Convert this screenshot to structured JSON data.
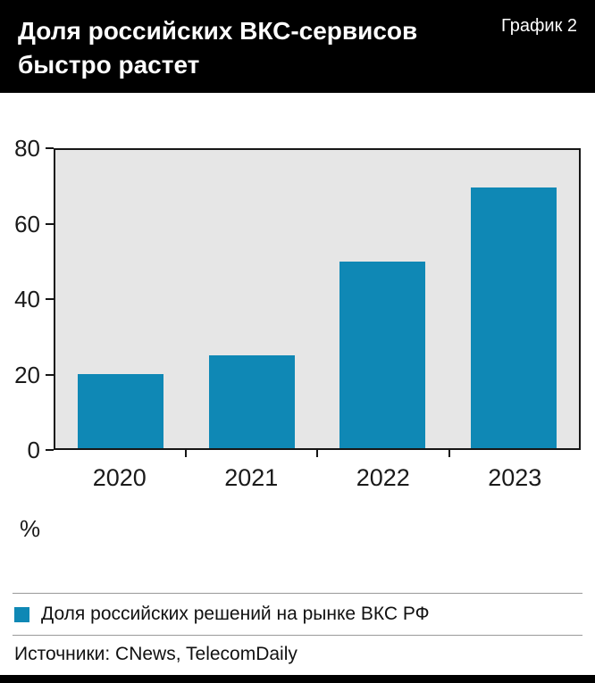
{
  "header": {
    "title_line1": "Доля российских ВКС-сервисов",
    "title_line2": "быстро растет",
    "chart_label": "График 2"
  },
  "chart_data": {
    "type": "bar",
    "title": "Доля российских ВКС-сервисов быстро растет",
    "categories": [
      "2020",
      "2021",
      "2022",
      "2023"
    ],
    "values": [
      20,
      25,
      50,
      70
    ],
    "xlabel": "",
    "ylabel": "%",
    "ylim": [
      0,
      80
    ],
    "yticks": [
      0,
      20,
      40,
      60,
      80
    ],
    "bar_color": "#0f88b5",
    "plot_bg": "#e6e6e6",
    "grid": false,
    "legend_position": "bottom",
    "legend": [
      {
        "label": "Доля российских решений на рынке ВКС РФ",
        "color": "#0f88b5"
      }
    ]
  },
  "footer": {
    "sources": "Источники: CNews, TelecomDaily"
  }
}
